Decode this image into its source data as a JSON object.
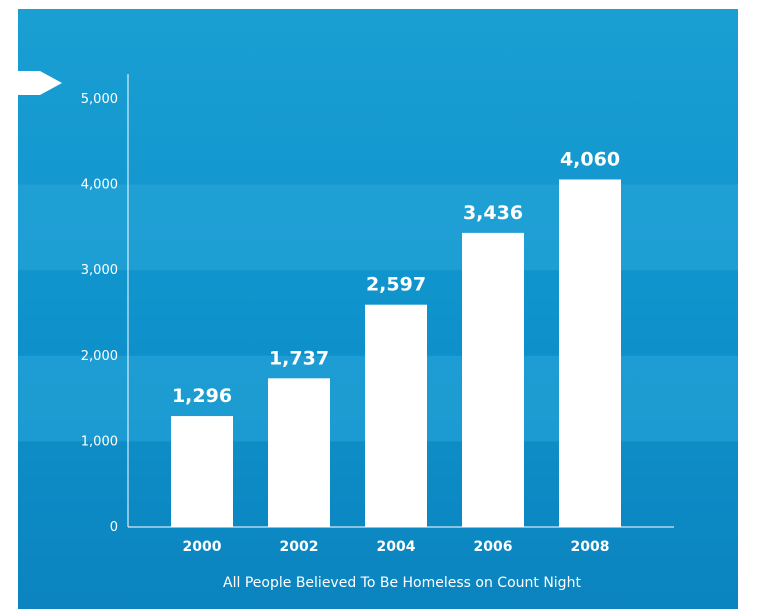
{
  "chart_data": {
    "type": "bar",
    "title": "",
    "xlabel": "All People Believed To Be Homeless on Count Night",
    "ylabel": "",
    "categories": [
      "2000",
      "2002",
      "2004",
      "2006",
      "2008"
    ],
    "values": [
      1296,
      1737,
      2597,
      3436,
      4060
    ],
    "value_labels": [
      "1,296",
      "1,737",
      "2,597",
      "3,436",
      "4,060"
    ],
    "ylim": [
      0,
      5000
    ],
    "yticks": [
      0,
      1000,
      2000,
      3000,
      4000,
      5000
    ],
    "ytick_labels": [
      "0",
      "1,000",
      "2,000",
      "3,000",
      "4,000",
      "5,000"
    ],
    "grid": "horizontal bands",
    "legend": "none"
  },
  "colors": {
    "background": "#0f93cc",
    "band_light": "#2aa7db",
    "bar": "#ffffff",
    "text": "#ffffff"
  }
}
